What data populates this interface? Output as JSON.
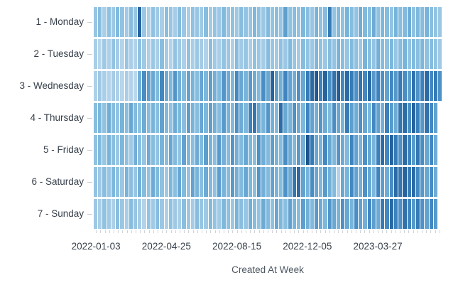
{
  "chart_data": {
    "type": "heatmap",
    "title": "",
    "xlabel": "Created At Week",
    "ylabel": "",
    "legend": "none",
    "grid": false,
    "value_range": [
      0,
      100
    ],
    "colormap_stops": [
      "#d9e8f5",
      "#b4d3ea",
      "#7db8dc",
      "#3c82bd",
      "#13477f"
    ],
    "x_tick_labels": [
      "2022-01-03",
      "2022-04-25",
      "2022-08-15",
      "2022-12-05",
      "2023-03-27"
    ],
    "x_tick_week_indices": [
      0,
      16,
      32,
      48,
      64
    ],
    "weeks_max": 79,
    "rows": [
      {
        "label": "1 - Monday",
        "values": [
          38,
          45,
          30,
          42,
          35,
          48,
          40,
          33,
          46,
          38,
          88,
          36,
          28,
          42,
          34,
          30,
          44,
          38,
          32,
          46,
          36,
          30,
          42,
          38,
          34,
          45,
          33,
          40,
          36,
          48,
          38,
          42,
          35,
          46,
          40,
          38,
          50,
          42,
          36,
          48,
          40,
          44,
          38,
          62,
          42,
          46,
          40,
          50,
          44,
          38,
          52,
          42,
          46,
          78,
          40,
          48,
          42,
          52,
          46,
          40,
          55,
          48,
          44,
          56,
          42,
          50,
          46,
          40,
          52,
          44,
          48,
          55,
          42,
          50,
          46,
          52,
          44,
          40,
          36
        ]
      },
      {
        "label": "2 - Tuesday",
        "values": [
          30,
          22,
          35,
          28,
          40,
          32,
          24,
          38,
          30,
          26,
          42,
          34,
          28,
          36,
          30,
          44,
          32,
          26,
          40,
          34,
          28,
          42,
          30,
          36,
          32,
          26,
          44,
          34,
          30,
          40,
          36,
          28,
          46,
          34,
          38,
          30,
          42,
          36,
          32,
          46,
          38,
          34,
          42,
          36,
          48,
          38,
          32,
          46,
          40,
          36,
          50,
          42,
          36,
          46,
          40,
          52,
          44,
          38,
          48,
          42,
          36,
          52,
          44,
          40,
          54,
          46,
          42,
          50,
          38,
          46,
          52,
          40,
          48,
          44,
          50,
          42,
          46,
          40,
          34
        ]
      },
      {
        "label": "3 - Wednesday",
        "values": [
          28,
          35,
          30,
          25,
          32,
          28,
          22,
          30,
          26,
          20,
          55,
          70,
          62,
          58,
          48,
          72,
          56,
          50,
          66,
          54,
          48,
          60,
          52,
          46,
          58,
          50,
          62,
          54,
          48,
          66,
          56,
          50,
          72,
          58,
          52,
          64,
          56,
          48,
          70,
          58,
          88,
          62,
          54,
          74,
          60,
          55,
          68,
          58,
          78,
          85,
          92,
          75,
          88,
          70,
          82,
          90,
          72,
          85,
          78,
          68,
          80,
          72,
          85,
          65,
          75,
          68,
          60,
          72,
          65,
          78,
          70,
          62,
          82,
          68,
          75,
          85,
          72,
          78,
          68
        ]
      },
      {
        "label": "4 - Thursday",
        "values": [
          45,
          50,
          42,
          55,
          46,
          40,
          52,
          44,
          58,
          48,
          42,
          56,
          46,
          52,
          44,
          60,
          48,
          42,
          56,
          50,
          44,
          62,
          52,
          46,
          58,
          50,
          62,
          54,
          46,
          64,
          52,
          48,
          68,
          56,
          50,
          75,
          80,
          58,
          52,
          66,
          54,
          48,
          84,
          58,
          52,
          68,
          56,
          50,
          74,
          60,
          54,
          66,
          56,
          48,
          70,
          58,
          52,
          78,
          62,
          55,
          68,
          58,
          50,
          72,
          60,
          54,
          76,
          64,
          56,
          80,
          84,
          70,
          88,
          76,
          65,
          82,
          72,
          60
        ]
      },
      {
        "label": "5 - Friday",
        "values": [
          42,
          48,
          38,
          52,
          44,
          36,
          50,
          42,
          34,
          54,
          44,
          38,
          56,
          46,
          40,
          52,
          44,
          58,
          48,
          40,
          60,
          50,
          44,
          56,
          48,
          62,
          52,
          44,
          64,
          54,
          46,
          66,
          54,
          48,
          58,
          50,
          44,
          68,
          55,
          48,
          62,
          52,
          46,
          70,
          56,
          50,
          64,
          54,
          95,
          78,
          58,
          52,
          72,
          58,
          50,
          66,
          56,
          48,
          74,
          60,
          52,
          68,
          58,
          52,
          76,
          84,
          72,
          88,
          78,
          68,
          85,
          75,
          64,
          80,
          70,
          58,
          72,
          55
        ]
      },
      {
        "label": "6 - Saturday",
        "values": [
          40,
          35,
          45,
          38,
          50,
          42,
          36,
          52,
          44,
          38,
          54,
          46,
          40,
          56,
          48,
          42,
          34,
          50,
          44,
          58,
          48,
          40,
          60,
          52,
          44,
          56,
          48,
          42,
          62,
          52,
          46,
          64,
          54,
          48,
          58,
          50,
          44,
          66,
          54,
          48,
          60,
          52,
          46,
          68,
          56,
          80,
          85,
          60,
          52,
          70,
          58,
          50,
          64,
          54,
          48,
          25,
          58,
          52,
          72,
          60,
          54,
          68,
          58,
          50,
          74,
          62,
          55,
          70,
          85,
          80,
          88,
          78,
          85,
          72,
          65,
          58,
          70,
          55
        ]
      },
      {
        "label": "7 - Sunday",
        "values": [
          35,
          30,
          42,
          34,
          28,
          44,
          36,
          30,
          46,
          38,
          32,
          25,
          40,
          34,
          45,
          36,
          28,
          42,
          35,
          30,
          44,
          36,
          32,
          46,
          38,
          34,
          48,
          40,
          34,
          50,
          42,
          36,
          52,
          44,
          38,
          54,
          46,
          40,
          56,
          48,
          42,
          58,
          50,
          44,
          60,
          52,
          46,
          62,
          54,
          48,
          64,
          56,
          50,
          66,
          58,
          52,
          68,
          58,
          52,
          70,
          60,
          54,
          72,
          62,
          56,
          78,
          72,
          85,
          75,
          68,
          82,
          74,
          65,
          78,
          68,
          60,
          72,
          64
        ]
      }
    ]
  }
}
